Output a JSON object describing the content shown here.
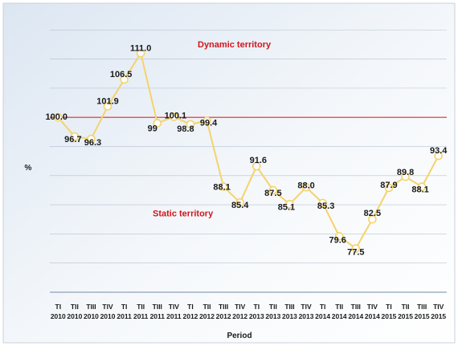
{
  "chart_data": {
    "type": "line",
    "title": "",
    "xlabel": "Period",
    "ylabel": "%",
    "categories": [
      [
        "TI",
        "2010"
      ],
      [
        "TII",
        "2010"
      ],
      [
        "TIII",
        "2010"
      ],
      [
        "TIV",
        "2010"
      ],
      [
        "TI",
        "2011"
      ],
      [
        "TII",
        "2011"
      ],
      [
        "TIII",
        "2011"
      ],
      [
        "TIV",
        "2011"
      ],
      [
        "TI",
        "2012"
      ],
      [
        "TII",
        "2012"
      ],
      [
        "TIII",
        "2012"
      ],
      [
        "TIV",
        "2012"
      ],
      [
        "TI",
        "2013"
      ],
      [
        "TII",
        "2013"
      ],
      [
        "TIII",
        "2013"
      ],
      [
        "TIV",
        "2013"
      ],
      [
        "TI",
        "2014"
      ],
      [
        "TII",
        "2014"
      ],
      [
        "TIII",
        "2014"
      ],
      [
        "TIV",
        "2014"
      ],
      [
        "TI",
        "2015"
      ],
      [
        "TII",
        "2015"
      ],
      [
        "TIII",
        "2015"
      ],
      [
        "TIV",
        "2015"
      ]
    ],
    "series": [
      {
        "values": [
          100.0,
          96.7,
          96.3,
          101.9,
          106.5,
          111.0,
          99,
          100.1,
          98.8,
          99.4,
          88.1,
          85.4,
          91.6,
          87.5,
          85.1,
          88.0,
          85.3,
          79.6,
          77.5,
          82.5,
          87.9,
          89.8,
          88.1,
          93.4
        ],
        "labels": [
          "100.0",
          "96.7",
          "96.3",
          "101.9",
          "106.5",
          "111.0",
          "99",
          "100.1",
          "98.8",
          "99.4",
          "88.1",
          "85.4",
          "91.6",
          "87.5",
          "85.1",
          "88.0",
          "85.3",
          "79.6",
          "77.5",
          "82.5",
          "87.9",
          "89.8",
          "88.1",
          "93.4"
        ]
      }
    ],
    "reference_line": {
      "value": 100,
      "color": "#e8262b"
    },
    "annotations": [
      {
        "text": "Dynamic territory",
        "x": 8,
        "y": 112
      },
      {
        "text": "Static territory",
        "x": 8,
        "y": 83
      }
    ],
    "ylim": [
      70,
      116
    ],
    "grid": true,
    "legend": "none",
    "colors": {
      "line": "#f5d36b",
      "marker_fill": "#ffffff",
      "grid": "#8497b0",
      "reference": "#e8262b",
      "annotation": "#d0161b"
    }
  }
}
